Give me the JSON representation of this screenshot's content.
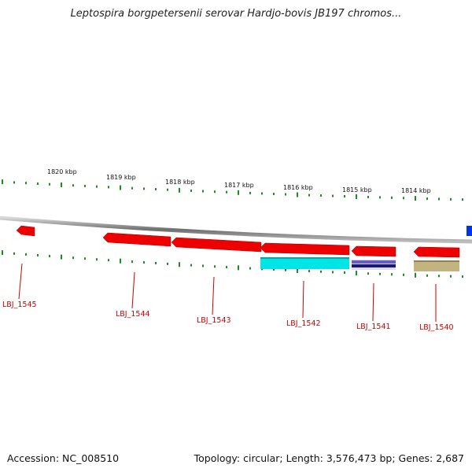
{
  "title": "Leptospira borgpetersenii serovar Hardjo-bovis JB197 chromos...",
  "footer": {
    "accession": "Accession: NC_008510",
    "topology": "Topology: circular; Length: 3,576,473 bp; Genes: 2,687"
  },
  "colors": {
    "backbone": "#8c8c8c",
    "tick": "#1e8c1e",
    "gene_red": "#ee0000",
    "gene_label": "#cc0000",
    "feature_cyan": "#00e5e5",
    "feature_navy": "#1a1a70",
    "feature_olive": "#c2b480",
    "offscreen_blue": "#0033ee"
  },
  "kbp_labels": [
    "1820 kbp",
    "1819 kbp",
    "1818 kbp",
    "1817 kbp",
    "1816 kbp",
    "1815 kbp",
    "1814 kbp"
  ],
  "genes": [
    {
      "label": "LBJ_1545",
      "strand": "minus",
      "feature": "none"
    },
    {
      "label": "LBJ_1544",
      "strand": "minus",
      "feature": "none"
    },
    {
      "label": "LBJ_1543",
      "strand": "minus",
      "feature": "none"
    },
    {
      "label": "LBJ_1542",
      "strand": "minus",
      "feature": "cyan"
    },
    {
      "label": "LBJ_1541",
      "strand": "minus",
      "feature": "navy"
    },
    {
      "label": "LBJ_1540",
      "strand": "minus",
      "feature": "olive"
    }
  ]
}
